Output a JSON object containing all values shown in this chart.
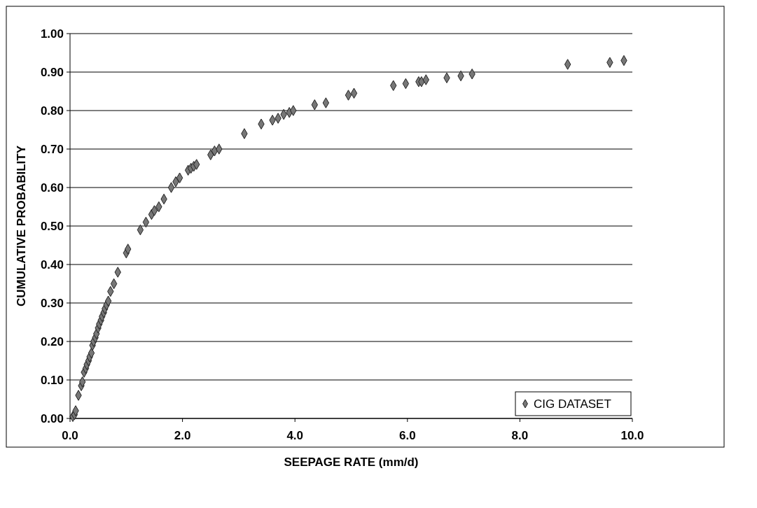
{
  "chart_data": {
    "type": "scatter",
    "xlabel": "SEEPAGE RATE (mm/d)",
    "ylabel": "CUMULATIVE PROBABILITY",
    "xlim": [
      0,
      10
    ],
    "ylim": [
      0,
      1
    ],
    "xticks": [
      {
        "value": 0,
        "label": "0.0"
      },
      {
        "value": 2,
        "label": "2.0"
      },
      {
        "value": 4,
        "label": "4.0"
      },
      {
        "value": 6,
        "label": "6.0"
      },
      {
        "value": 8,
        "label": "8.0"
      },
      {
        "value": 10,
        "label": "10.0"
      }
    ],
    "yticks": [
      {
        "value": 0,
        "label": "0.00"
      },
      {
        "value": 0.1,
        "label": "0.10"
      },
      {
        "value": 0.2,
        "label": "0.20"
      },
      {
        "value": 0.3,
        "label": "0.30"
      },
      {
        "value": 0.4,
        "label": "0.40"
      },
      {
        "value": 0.5,
        "label": "0.50"
      },
      {
        "value": 0.6,
        "label": "0.60"
      },
      {
        "value": 0.7,
        "label": "0.70"
      },
      {
        "value": 0.8,
        "label": "0.80"
      },
      {
        "value": 0.9,
        "label": "0.90"
      },
      {
        "value": 1,
        "label": "1.00"
      }
    ],
    "grid": "y",
    "legend": "bottom right",
    "marker": "diamond",
    "series": [
      {
        "name": "CIG DATASET",
        "color": "#777777",
        "x": [
          0.05,
          0.08,
          0.1,
          0.15,
          0.2,
          0.22,
          0.25,
          0.28,
          0.3,
          0.33,
          0.35,
          0.38,
          0.4,
          0.42,
          0.45,
          0.47,
          0.5,
          0.52,
          0.55,
          0.57,
          0.6,
          0.62,
          0.65,
          0.68,
          0.72,
          0.78,
          0.85,
          1.0,
          1.03,
          1.25,
          1.35,
          1.45,
          1.5,
          1.58,
          1.67,
          1.8,
          1.88,
          1.95,
          2.1,
          2.15,
          2.2,
          2.25,
          2.5,
          2.57,
          2.65,
          3.1,
          3.4,
          3.6,
          3.7,
          3.8,
          3.9,
          3.97,
          4.35,
          4.55,
          4.95,
          5.05,
          5.75,
          5.97,
          6.2,
          6.25,
          6.33,
          6.7,
          6.95,
          7.15,
          8.85,
          9.6,
          9.85
        ],
        "values": [
          0.005,
          0.01,
          0.02,
          0.06,
          0.085,
          0.095,
          0.12,
          0.13,
          0.14,
          0.15,
          0.16,
          0.17,
          0.19,
          0.2,
          0.21,
          0.22,
          0.235,
          0.245,
          0.255,
          0.265,
          0.275,
          0.285,
          0.295,
          0.305,
          0.33,
          0.35,
          0.38,
          0.43,
          0.44,
          0.49,
          0.51,
          0.53,
          0.54,
          0.55,
          0.57,
          0.6,
          0.615,
          0.625,
          0.645,
          0.65,
          0.655,
          0.66,
          0.685,
          0.695,
          0.7,
          0.74,
          0.765,
          0.775,
          0.78,
          0.79,
          0.795,
          0.8,
          0.815,
          0.82,
          0.84,
          0.845,
          0.865,
          0.87,
          0.875,
          0.875,
          0.88,
          0.885,
          0.89,
          0.895,
          0.92,
          0.925,
          0.93
        ]
      }
    ]
  }
}
